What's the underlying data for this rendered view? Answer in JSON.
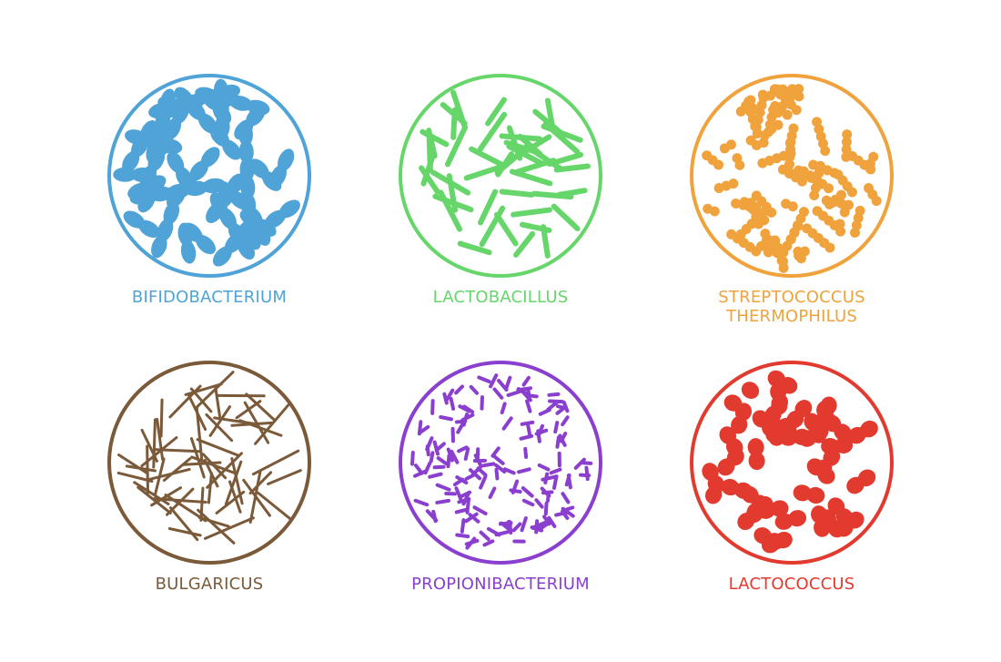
{
  "microbes": [
    {
      "key": "bifidobacterium",
      "lines": [
        "BIFIDOBACTERIUM"
      ],
      "color": "#4fa3d6",
      "shape": "club-chain"
    },
    {
      "key": "lactobacillus",
      "lines": [
        "LACTOBACILLUS"
      ],
      "color": "#66d66b",
      "shape": "rod"
    },
    {
      "key": "streptococcus-thermophilus",
      "lines": [
        "STREPTOCOCCUS",
        "THERMOPHILUS"
      ],
      "color": "#f0a23c",
      "shape": "coccus-chain"
    },
    {
      "key": "bulgaricus",
      "lines": [
        "BULGARICUS"
      ],
      "color": "#7b5a3a",
      "shape": "thin-rod"
    },
    {
      "key": "propionibacterium",
      "lines": [
        "PROPIONIBACTERIUM"
      ],
      "color": "#8a3fcf",
      "shape": "short-rod"
    },
    {
      "key": "lactococcus",
      "lines": [
        "LACTOCOCCUS"
      ],
      "color": "#e23a2e",
      "shape": "diplococcus"
    }
  ]
}
